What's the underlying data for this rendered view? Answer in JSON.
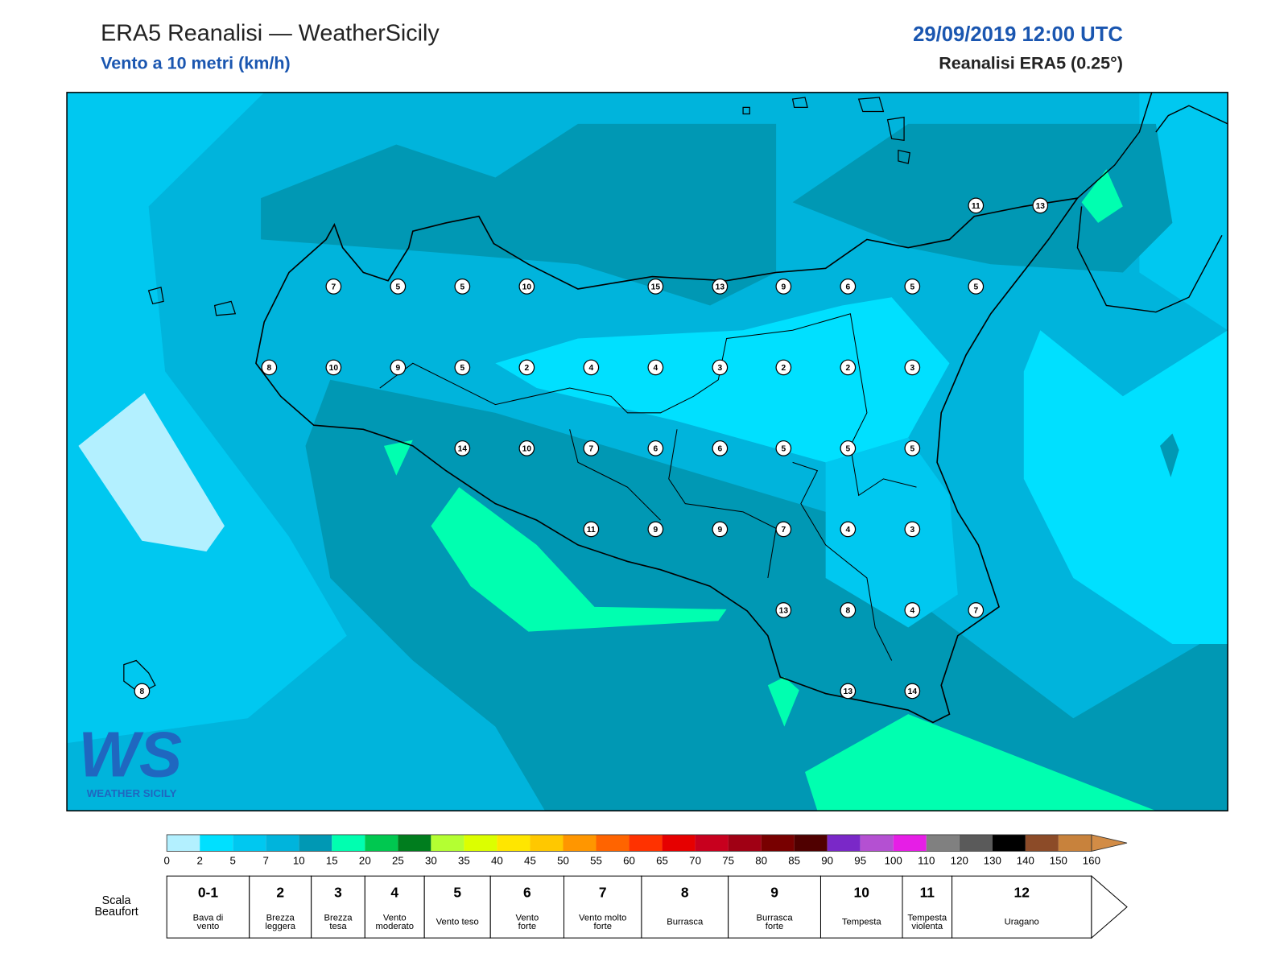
{
  "header": {
    "title": "ERA5 Reanalisi — WeatherSicily",
    "subtitle": "Vento a 10 metri (km/h)",
    "datetime": "29/09/2019 12:00 UTC",
    "source": "Reanalisi ERA5 (0.25°)"
  },
  "stations": [
    7,
    5,
    5,
    10,
    15,
    13,
    9,
    6,
    5,
    5,
    11,
    13,
    8,
    10,
    9,
    5,
    2,
    4,
    4,
    3,
    2,
    2,
    3,
    14,
    10,
    7,
    6,
    6,
    5,
    5,
    5,
    11,
    9,
    9,
    7,
    4,
    3,
    13,
    8,
    4,
    7,
    13,
    14,
    8
  ],
  "colorbar": {
    "ticks": [
      0,
      2,
      5,
      7,
      10,
      15,
      20,
      25,
      30,
      35,
      40,
      45,
      50,
      55,
      60,
      65,
      70,
      75,
      80,
      85,
      90,
      95,
      100,
      110,
      120,
      130,
      140,
      150,
      160
    ],
    "colors": [
      "#b3f0ff",
      "#00e0ff",
      "#00c8f0",
      "#00b4dc",
      "#0098b4",
      "#00ffb0",
      "#00c850",
      "#007d1e",
      "#b4ff32",
      "#dcff00",
      "#ffe600",
      "#ffc800",
      "#ff9600",
      "#ff6400",
      "#ff3200",
      "#e60000",
      "#c8001e",
      "#a00014",
      "#780000",
      "#500000",
      "#7a28c8",
      "#b450d2",
      "#e61ee6",
      "#808080",
      "#5a5a5a",
      "#000000",
      "#8c4b28",
      "#c8823c"
    ],
    "extend_color": "#d28c46"
  },
  "beaufort": {
    "title": [
      "Scala",
      "Beaufort"
    ],
    "levels": [
      {
        "force": "0-1",
        "desc": [
          "Bava di",
          "vento"
        ]
      },
      {
        "force": "2",
        "desc": [
          "Brezza",
          "leggera"
        ]
      },
      {
        "force": "3",
        "desc": [
          "Brezza",
          "tesa"
        ]
      },
      {
        "force": "4",
        "desc": [
          "Vento",
          "moderato"
        ]
      },
      {
        "force": "5",
        "desc": [
          "Vento teso"
        ]
      },
      {
        "force": "6",
        "desc": [
          "Vento",
          "forte"
        ]
      },
      {
        "force": "7",
        "desc": [
          "Vento molto",
          "forte"
        ]
      },
      {
        "force": "8",
        "desc": [
          "Burrasca"
        ]
      },
      {
        "force": "9",
        "desc": [
          "Burrasca",
          "forte"
        ]
      },
      {
        "force": "10",
        "desc": [
          "Tempesta"
        ]
      },
      {
        "force": "11",
        "desc": [
          "Tempesta",
          "violenta"
        ]
      },
      {
        "force": "12",
        "desc": [
          "Uragano"
        ]
      }
    ]
  },
  "logo": {
    "mark": "WS",
    "text": "WEATHER SICILY"
  }
}
